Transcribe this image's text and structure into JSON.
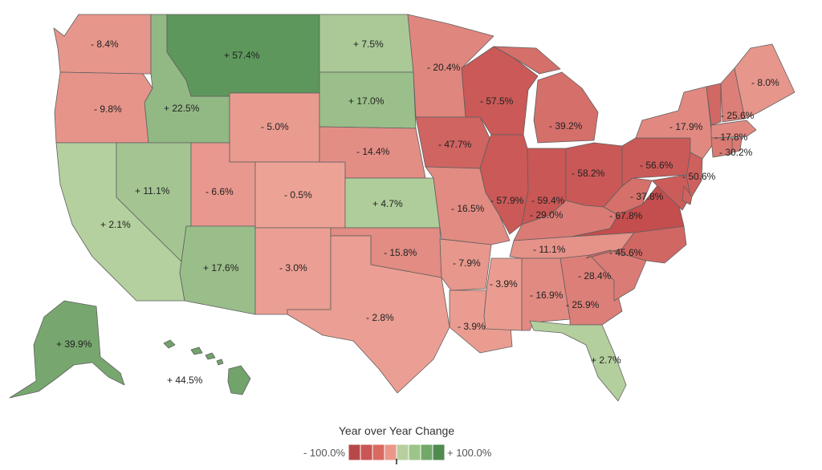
{
  "legend": {
    "title": "Year over Year Change",
    "min_label": "- 100.0%",
    "max_label": "+ 100.0%",
    "swatches": [
      "#b84848",
      "#c95555",
      "#d96a60",
      "#eb968a",
      "#b7cf9f",
      "#9cc58a",
      "#72a86a",
      "#4f8a4f"
    ]
  },
  "states": [
    {
      "id": "WA",
      "label": "- 8.4%",
      "value": -8.4
    },
    {
      "id": "OR",
      "label": "- 9.8%",
      "value": -9.8
    },
    {
      "id": "CA",
      "label": "+ 2.1%",
      "value": 2.1
    },
    {
      "id": "ID",
      "label": "+ 22.5%",
      "value": 22.5
    },
    {
      "id": "NV",
      "label": "+ 11.1%",
      "value": 11.1
    },
    {
      "id": "MT",
      "label": "+ 57.4%",
      "value": 57.4
    },
    {
      "id": "WY",
      "label": "- 5.0%",
      "value": -5.0
    },
    {
      "id": "UT",
      "label": "- 6.6%",
      "value": -6.6
    },
    {
      "id": "AZ",
      "label": "+ 17.6%",
      "value": 17.6
    },
    {
      "id": "CO",
      "label": "- 0.5%",
      "value": -0.5
    },
    {
      "id": "NM",
      "label": "- 3.0%",
      "value": -3.0
    },
    {
      "id": "ND",
      "label": "+ 7.5%",
      "value": 7.5
    },
    {
      "id": "SD",
      "label": "+ 17.0%",
      "value": 17.0
    },
    {
      "id": "NE",
      "label": "- 14.4%",
      "value": -14.4
    },
    {
      "id": "KS",
      "label": "+ 4.7%",
      "value": 4.7
    },
    {
      "id": "OK",
      "label": "- 15.8%",
      "value": -15.8
    },
    {
      "id": "TX",
      "label": "- 2.8%",
      "value": -2.8
    },
    {
      "id": "MN",
      "label": "- 20.4%",
      "value": -20.4
    },
    {
      "id": "IA",
      "label": "- 47.7%",
      "value": -47.7
    },
    {
      "id": "MO",
      "label": "- 16.5%",
      "value": -16.5
    },
    {
      "id": "AR",
      "label": "- 7.9%",
      "value": -7.9
    },
    {
      "id": "LA",
      "label": "- 3.9%",
      "value": -3.9
    },
    {
      "id": "WI",
      "label": "- 57.5%",
      "value": -57.5
    },
    {
      "id": "IL",
      "label": "- 57.9%",
      "value": -57.9
    },
    {
      "id": "MI",
      "label": "- 39.2%",
      "value": -39.2
    },
    {
      "id": "IN",
      "label": "- 59.4%",
      "value": -59.4
    },
    {
      "id": "OH",
      "label": "- 58.2%",
      "value": -58.2
    },
    {
      "id": "KY",
      "label": "- 29.0%",
      "value": -29.0
    },
    {
      "id": "TN",
      "label": "- 11.1%",
      "value": -11.1
    },
    {
      "id": "MS",
      "label": "- 3.9%",
      "value": -3.9
    },
    {
      "id": "AL",
      "label": "- 16.9%",
      "value": -16.9
    },
    {
      "id": "GA",
      "label": "- 25.9%",
      "value": -25.9
    },
    {
      "id": "FL",
      "label": "+ 2.7%",
      "value": 2.7
    },
    {
      "id": "SC",
      "label": "- 28.4%",
      "value": -28.4
    },
    {
      "id": "NC",
      "label": "- 45.6%",
      "value": -45.6
    },
    {
      "id": "VA",
      "label": "- 67.8%",
      "value": -67.8
    },
    {
      "id": "WV",
      "label": "- 37.8%",
      "value": -37.8
    },
    {
      "id": "PA",
      "label": "- 56.6%",
      "value": -56.6
    },
    {
      "id": "NJ",
      "label": "- 50.6%",
      "value": -50.6
    },
    {
      "id": "NY",
      "label": "- 17.9%",
      "value": -17.9
    },
    {
      "id": "CT",
      "label": "- 30.2%",
      "value": -30.2
    },
    {
      "id": "MA",
      "label": "- 17.8%",
      "value": -17.8
    },
    {
      "id": "NH",
      "label": "- 25.6%",
      "value": -25.6
    },
    {
      "id": "ME",
      "label": "- 8.0%",
      "value": -8.0
    },
    {
      "id": "VT",
      "value": -45.0
    },
    {
      "id": "MD",
      "value": -55.0
    },
    {
      "id": "DE",
      "value": -50.0
    },
    {
      "id": "RI",
      "value": -30.0
    },
    {
      "id": "AK",
      "label": "+ 39.9%",
      "value": 39.9
    },
    {
      "id": "HI",
      "label": "+ 44.5%",
      "value": 44.5
    }
  ]
}
